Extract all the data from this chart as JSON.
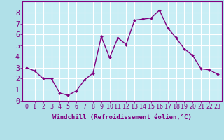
{
  "x": [
    0,
    1,
    2,
    3,
    4,
    5,
    6,
    7,
    8,
    9,
    10,
    11,
    12,
    13,
    14,
    15,
    16,
    17,
    18,
    19,
    20,
    21,
    22,
    23
  ],
  "y": [
    3.0,
    2.7,
    2.0,
    2.0,
    0.7,
    0.5,
    0.9,
    1.9,
    2.5,
    5.8,
    3.9,
    5.7,
    5.1,
    7.3,
    7.4,
    7.5,
    8.2,
    6.6,
    5.7,
    4.7,
    4.1,
    2.9,
    2.8,
    2.4
  ],
  "line_color": "#800080",
  "marker": "D",
  "marker_size": 2.0,
  "background_color": "#b0e0e8",
  "plot_bg_color": "#c8eef5",
  "grid_color": "#ffffff",
  "xlabel": "Windchill (Refroidissement éolien,°C)",
  "xlabel_color": "#800080",
  "xlabel_fontsize": 6.5,
  "tick_color": "#800080",
  "tick_fontsize": 6,
  "ylim": [
    0,
    9
  ],
  "xlim": [
    -0.5,
    23.5
  ],
  "yticks": [
    0,
    1,
    2,
    3,
    4,
    5,
    6,
    7,
    8
  ],
  "xticks": [
    0,
    1,
    2,
    3,
    4,
    5,
    6,
    7,
    8,
    9,
    10,
    11,
    12,
    13,
    14,
    15,
    16,
    17,
    18,
    19,
    20,
    21,
    22,
    23
  ],
  "xtick_labels": [
    "0",
    "1",
    "2",
    "3",
    "4",
    "5",
    "6",
    "7",
    "8",
    "9",
    "10",
    "11",
    "12",
    "13",
    "14",
    "15",
    "16",
    "17",
    "18",
    "19",
    "20",
    "21",
    "22",
    "23"
  ],
  "line_width": 1.0
}
